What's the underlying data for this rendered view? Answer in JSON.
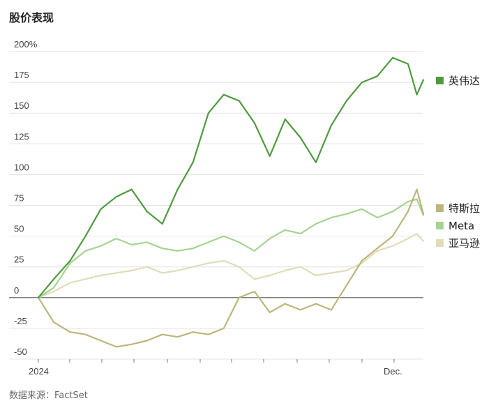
{
  "chart_data": {
    "type": "line",
    "title": "股价表现",
    "source": "数据来源：FactSet",
    "y_ticks": [
      "200%",
      "175",
      "150",
      "125",
      "100",
      "75",
      "50",
      "25",
      "0",
      "-25",
      "-50"
    ],
    "y_tick_values": [
      200,
      175,
      150,
      125,
      100,
      75,
      50,
      25,
      0,
      -25,
      -50
    ],
    "ylim": [
      -50,
      200
    ],
    "x_labels": [
      "2024",
      "Dec."
    ],
    "x": [
      "2024-01-02",
      "2024-01-16",
      "2024-01-31",
      "2024-02-14",
      "2024-02-28",
      "2024-03-13",
      "2024-03-27",
      "2024-04-10",
      "2024-04-24",
      "2024-05-08",
      "2024-05-22",
      "2024-06-05",
      "2024-06-19",
      "2024-07-03",
      "2024-07-17",
      "2024-07-31",
      "2024-08-14",
      "2024-08-28",
      "2024-09-11",
      "2024-09-25",
      "2024-10-09",
      "2024-10-23",
      "2024-11-06",
      "2024-11-20",
      "2024-12-04",
      "2024-12-12",
      "2024-12-18"
    ],
    "legend_position": "right",
    "grid": true,
    "series": [
      {
        "name": "英伟达",
        "color": "#4e9a3e",
        "values": [
          0,
          15,
          30,
          50,
          72,
          82,
          88,
          70,
          60,
          88,
          110,
          150,
          165,
          160,
          142,
          115,
          145,
          130,
          110,
          140,
          160,
          175,
          180,
          195,
          190,
          165,
          177
        ]
      },
      {
        "name": "特斯拉",
        "color": "#bdb57a",
        "values": [
          0,
          -20,
          -28,
          -30,
          -35,
          -40,
          -38,
          -35,
          -30,
          -32,
          -28,
          -30,
          -25,
          0,
          5,
          -12,
          -5,
          -10,
          -5,
          -10,
          10,
          30,
          40,
          50,
          70,
          88,
          68
        ]
      },
      {
        "name": "Meta",
        "color": "#a6d38f",
        "values": [
          0,
          8,
          28,
          38,
          42,
          48,
          43,
          45,
          40,
          38,
          40,
          45,
          50,
          45,
          38,
          48,
          55,
          52,
          60,
          65,
          68,
          72,
          65,
          70,
          78,
          80,
          67
        ]
      },
      {
        "name": "亚马逊",
        "color": "#e0dcb8",
        "values": [
          0,
          5,
          12,
          15,
          18,
          20,
          22,
          25,
          20,
          22,
          25,
          28,
          30,
          25,
          15,
          18,
          22,
          25,
          18,
          20,
          22,
          28,
          38,
          42,
          48,
          52,
          46
        ]
      }
    ]
  }
}
